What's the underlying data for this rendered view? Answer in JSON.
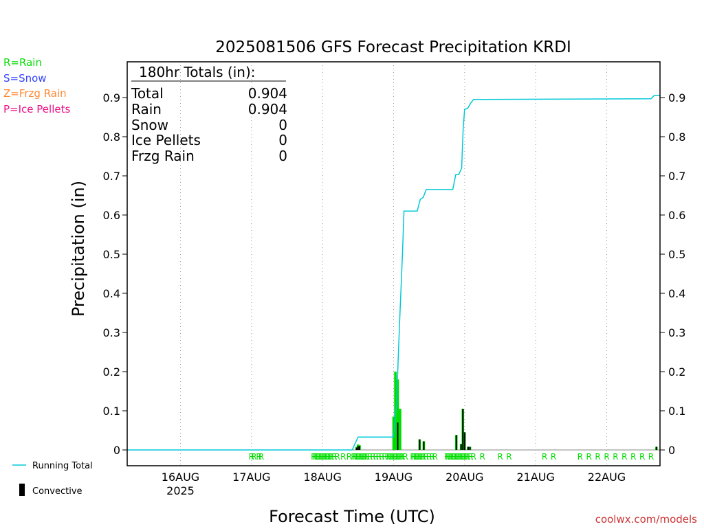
{
  "legend": {
    "rain": "R=Rain",
    "snow": "S=Snow",
    "frzg_rain": "Z=Frzg Rain",
    "ice_pellets": "P=Ice Pellets",
    "running_total": "Running Total",
    "convective": "Convective"
  },
  "totals": {
    "heading": "180hr Totals (in):",
    "rows": [
      {
        "label": "Total",
        "value": "0.904"
      },
      {
        "label": "Rain",
        "value": "0.904"
      },
      {
        "label": "Snow",
        "value": "0"
      },
      {
        "label": "Ice Pellets",
        "value": "0"
      },
      {
        "label": "Frzg Rain",
        "value": "0"
      }
    ]
  },
  "credit": "coolwx.com/models",
  "colors": {
    "rain": "#00dd00",
    "snow": "#3344ff",
    "frzg_rain": "#ff8833",
    "ice_pellets": "#ee1188",
    "running_total": "#00c8d8",
    "convective": "#000000",
    "credit": "#cc3333"
  },
  "chart_data": {
    "type": "bar",
    "title": "2025081506 GFS Forecast Precipitation KRDI",
    "xlabel": "Forecast Time (UTC)",
    "ylabel": "Precipitation (in)",
    "ylim": [
      0,
      1.0
    ],
    "xlim_hours": [
      0,
      180
    ],
    "y_ticks": [
      "0",
      "0.1",
      "0.2",
      "0.3",
      "0.4",
      "0.5",
      "0.6",
      "0.7",
      "0.8",
      "0.9"
    ],
    "x_ticks": [
      {
        "label": "16AUG",
        "sub": "2025",
        "hour": 18
      },
      {
        "label": "17AUG",
        "hour": 42
      },
      {
        "label": "18AUG",
        "hour": 66
      },
      {
        "label": "19AUG",
        "hour": 90
      },
      {
        "label": "20AUG",
        "hour": 114
      },
      {
        "label": "21AUG",
        "hour": 138
      },
      {
        "label": "22AUG",
        "hour": 162
      }
    ],
    "grid": "vertical dotted at day boundaries",
    "running_total": {
      "name": "Running Total",
      "points": [
        [
          0,
          0
        ],
        [
          76,
          0
        ],
        [
          78,
          0.033
        ],
        [
          90,
          0.033
        ],
        [
          91,
          0.12
        ],
        [
          92,
          0.32
        ],
        [
          93,
          0.5
        ],
        [
          93.5,
          0.61
        ],
        [
          96,
          0.61
        ],
        [
          98,
          0.61
        ],
        [
          99,
          0.64
        ],
        [
          100,
          0.645
        ],
        [
          101,
          0.665
        ],
        [
          102,
          0.665
        ],
        [
          110,
          0.665
        ],
        [
          111,
          0.703
        ],
        [
          112,
          0.703
        ],
        [
          113,
          0.72
        ],
        [
          113.5,
          0.82
        ],
        [
          114,
          0.87
        ],
        [
          115,
          0.872
        ],
        [
          116,
          0.885
        ],
        [
          117,
          0.895
        ],
        [
          120,
          0.895
        ],
        [
          177,
          0.897
        ],
        [
          178,
          0.905
        ],
        [
          180,
          0.905
        ]
      ]
    },
    "precip_bars": [
      {
        "hour": 77.5,
        "value": 0.008,
        "convective": 0.006
      },
      {
        "hour": 78.0,
        "value": 0.014,
        "convective": 0.01
      },
      {
        "hour": 78.5,
        "value": 0.012,
        "convective": 0.01
      },
      {
        "hour": 90.0,
        "value": 0.085,
        "convective": 0.0
      },
      {
        "hour": 90.6,
        "value": 0.2,
        "convective": 0.0
      },
      {
        "hour": 91.4,
        "value": 0.18,
        "convective": 0.07
      },
      {
        "hour": 92.2,
        "value": 0.105,
        "convective": 0.0
      },
      {
        "hour": 98.8,
        "value": 0.027,
        "convective": 0.027
      },
      {
        "hour": 100.2,
        "value": 0.022,
        "convective": 0.022
      },
      {
        "hour": 111.2,
        "value": 0.038,
        "convective": 0.038
      },
      {
        "hour": 112.8,
        "value": 0.015,
        "convective": 0.015
      },
      {
        "hour": 113.4,
        "value": 0.105,
        "convective": 0.105
      },
      {
        "hour": 114.0,
        "value": 0.045,
        "convective": 0.045
      },
      {
        "hour": 115.2,
        "value": 0.008,
        "convective": 0.008
      },
      {
        "hour": 115.8,
        "value": 0.008,
        "convective": 0.008
      },
      {
        "hour": 178.8,
        "value": 0.008,
        "convective": 0.008
      }
    ],
    "ptype_hours": [
      42,
      42.8,
      44.5,
      45.3,
      63,
      63.5,
      64,
      64.5,
      65,
      65.5,
      66,
      66.5,
      67,
      67.5,
      68,
      68.5,
      69,
      70,
      71,
      73,
      75,
      76.5,
      77,
      77.5,
      78,
      78.5,
      79,
      79.5,
      80,
      80.5,
      81,
      82,
      83,
      84,
      85,
      86,
      87,
      88,
      88.5,
      89,
      89.5,
      90,
      90.5,
      91,
      91.5,
      92,
      92.5,
      93,
      94,
      96.5,
      97,
      97.5,
      98,
      98.5,
      99,
      99.5,
      100,
      101,
      102,
      103,
      104,
      108,
      108.5,
      109,
      109.5,
      110,
      110.5,
      111,
      111.5,
      112,
      112.5,
      113,
      113.5,
      114,
      114.5,
      115,
      116,
      117,
      120,
      126,
      129,
      141,
      144,
      153,
      156,
      159,
      162,
      165,
      168,
      171,
      174,
      177
    ],
    "ptype_symbol": "R"
  }
}
